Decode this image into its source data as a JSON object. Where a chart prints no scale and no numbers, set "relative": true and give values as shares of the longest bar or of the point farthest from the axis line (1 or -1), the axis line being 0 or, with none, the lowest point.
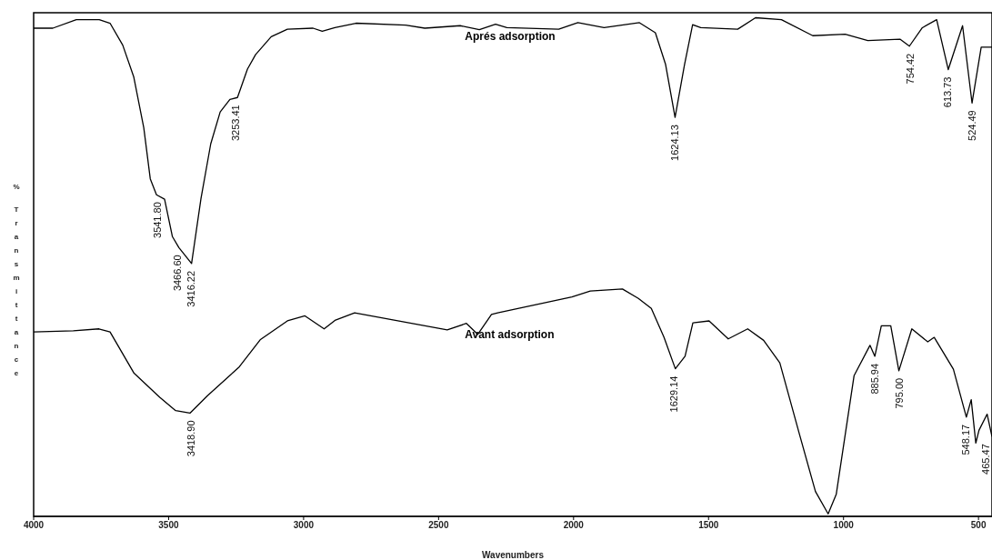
{
  "chart_data": {
    "type": "line",
    "relative": true,
    "xlabel": "Wavenumbers",
    "ylabel": "% Transmittance",
    "xlim": [
      4000,
      450
    ],
    "xticks": [
      4000,
      3500,
      3000,
      2500,
      2000,
      1500,
      1000,
      500
    ],
    "marker": "none",
    "line_style": "solid",
    "series": [
      {
        "name": "Aprés adsorption",
        "color": "#000000",
        "x": [
          4000,
          3929,
          3842,
          3757,
          3717,
          3670,
          3629,
          3592,
          3568,
          3545,
          3515,
          3486,
          3462,
          3415,
          3380,
          3344,
          3309,
          3273,
          3245,
          3208,
          3178,
          3120,
          3060,
          2965,
          2931,
          2884,
          2806,
          2622,
          2551,
          2420,
          2349,
          2289,
          2247,
          2055,
          1984,
          1887,
          1756,
          1697,
          1659,
          1624,
          1589,
          1559,
          1529,
          1392,
          1326,
          1230,
          1114,
          994,
          910,
          791,
          756,
          708,
          655,
          612,
          559,
          524,
          490,
          450
        ],
        "values": [
          0.979,
          0.979,
          0.996,
          0.996,
          0.989,
          0.945,
          0.881,
          0.779,
          0.677,
          0.645,
          0.636,
          0.561,
          0.539,
          0.507,
          0.638,
          0.747,
          0.811,
          0.836,
          0.84,
          0.897,
          0.926,
          0.962,
          0.977,
          0.979,
          0.973,
          0.98,
          0.989,
          0.985,
          0.979,
          0.984,
          0.976,
          0.987,
          0.98,
          0.977,
          0.99,
          0.98,
          0.99,
          0.97,
          0.906,
          0.8,
          0.906,
          0.986,
          0.98,
          0.977,
          1,
          0.996,
          0.964,
          0.967,
          0.954,
          0.957,
          0.943,
          0.98,
          0.996,
          0.896,
          0.984,
          0.829,
          0.941,
          0.941
        ]
      },
      {
        "name": "Avant adsorption",
        "color": "#000000",
        "x": [
          4000,
          3853,
          3758,
          3717,
          3628,
          3533,
          3474,
          3421,
          3356,
          3238,
          3161,
          3060,
          2995,
          2924,
          2884,
          2811,
          2468,
          2397,
          2355,
          2304,
          2281,
          2006,
          1938,
          1819,
          1760,
          1712,
          1665,
          1623,
          1587,
          1558,
          1498,
          1427,
          1355,
          1296,
          1236,
          1164,
          1104,
          1057,
          1027,
          961,
          902,
          884,
          860,
          825,
          795,
          747,
          688,
          664,
          593,
          545,
          527,
          510,
          498,
          468,
          450
        ],
        "values": [
          0.37,
          0.372,
          0.376,
          0.37,
          0.287,
          0.239,
          0.212,
          0.207,
          0.242,
          0.3,
          0.354,
          0.392,
          0.402,
          0.376,
          0.393,
          0.408,
          0.374,
          0.387,
          0.365,
          0.405,
          0.408,
          0.44,
          0.452,
          0.456,
          0.437,
          0.417,
          0.359,
          0.296,
          0.321,
          0.388,
          0.392,
          0.356,
          0.376,
          0.353,
          0.308,
          0.166,
          0.05,
          0.005,
          0.044,
          0.282,
          0.343,
          0.321,
          0.382,
          0.382,
          0.292,
          0.376,
          0.35,
          0.359,
          0.295,
          0.199,
          0.234,
          0.147,
          0.173,
          0.205,
          0.16
        ]
      }
    ],
    "annotations": [
      {
        "text": "3541.80",
        "x": 3541.8,
        "y": 0.645
      },
      {
        "text": "3466.60",
        "x": 3466.6,
        "y": 0.539
      },
      {
        "text": "3416.22",
        "x": 3416.22,
        "y": 0.507
      },
      {
        "text": "3253.41",
        "x": 3253.41,
        "y": 0.84
      },
      {
        "text": "1624.13",
        "x": 1624.13,
        "y": 0.8
      },
      {
        "text": "754.42",
        "x": 754.42,
        "y": 0.943
      },
      {
        "text": "613.73",
        "x": 613.73,
        "y": 0.896
      },
      {
        "text": "524.49",
        "x": 524.49,
        "y": 0.829
      },
      {
        "text": "3418.90",
        "x": 3418.9,
        "y": 0.207
      },
      {
        "text": "1629.14",
        "x": 1629.14,
        "y": 0.296
      },
      {
        "text": "885.94",
        "x": 885.94,
        "y": 0.321
      },
      {
        "text": "795.00",
        "x": 795,
        "y": 0.292
      },
      {
        "text": "548.17",
        "x": 548.17,
        "y": 0.199
      },
      {
        "text": "465.47",
        "x": 465.47,
        "y": 0.16
      }
    ]
  }
}
